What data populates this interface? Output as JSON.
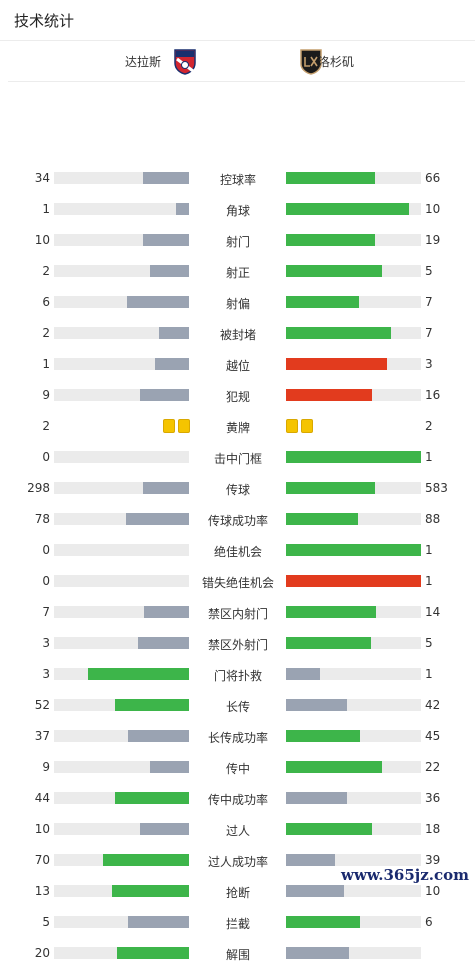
{
  "header": {
    "title": "技术统计"
  },
  "teams": {
    "home": "达拉斯",
    "away": "洛杉矶"
  },
  "colors": {
    "green": "#3db54a",
    "gray": "#9aa3b2",
    "red": "#e23b1e",
    "track": "#ebebeb",
    "yellow": "#f5c400"
  },
  "stats": [
    {
      "label": "控球率",
      "home": "34",
      "away": "66",
      "home_pct": 0.34,
      "away_pct": 0.66,
      "home_color": "gray",
      "away_color": "green"
    },
    {
      "label": "角球",
      "home": "1",
      "away": "10",
      "home_pct": 0.1,
      "away_pct": 0.91,
      "home_color": "gray",
      "away_color": "green"
    },
    {
      "label": "射门",
      "home": "10",
      "away": "19",
      "home_pct": 0.34,
      "away_pct": 0.66,
      "home_color": "gray",
      "away_color": "green"
    },
    {
      "label": "射正",
      "home": "2",
      "away": "5",
      "home_pct": 0.29,
      "away_pct": 0.71,
      "home_color": "gray",
      "away_color": "green"
    },
    {
      "label": "射偏",
      "home": "6",
      "away": "7",
      "home_pct": 0.46,
      "away_pct": 0.54,
      "home_color": "gray",
      "away_color": "green"
    },
    {
      "label": "被封堵",
      "home": "2",
      "away": "7",
      "home_pct": 0.22,
      "away_pct": 0.78,
      "home_color": "gray",
      "away_color": "green"
    },
    {
      "label": "越位",
      "home": "1",
      "away": "3",
      "home_pct": 0.25,
      "away_pct": 0.75,
      "home_color": "gray",
      "away_color": "red"
    },
    {
      "label": "犯规",
      "home": "9",
      "away": "16",
      "home_pct": 0.36,
      "away_pct": 0.64,
      "home_color": "gray",
      "away_color": "red"
    },
    {
      "label": "黄牌",
      "home": "2",
      "away": "2",
      "cards": true,
      "home_cards": 2,
      "away_cards": 2
    },
    {
      "label": "击中门框",
      "home": "0",
      "away": "1",
      "home_pct": 0,
      "away_pct": 1,
      "home_color": "gray",
      "away_color": "green"
    },
    {
      "label": "传球",
      "home": "298",
      "away": "583",
      "home_pct": 0.34,
      "away_pct": 0.66,
      "home_color": "gray",
      "away_color": "green"
    },
    {
      "label": "传球成功率",
      "home": "78",
      "away": "88",
      "home_pct": 0.47,
      "away_pct": 0.53,
      "home_color": "gray",
      "away_color": "green"
    },
    {
      "label": "绝佳机会",
      "home": "0",
      "away": "1",
      "home_pct": 0,
      "away_pct": 1,
      "home_color": "gray",
      "away_color": "green"
    },
    {
      "label": "错失绝佳机会",
      "home": "0",
      "away": "1",
      "home_pct": 0,
      "away_pct": 1,
      "home_color": "gray",
      "away_color": "red"
    },
    {
      "label": "禁区内射门",
      "home": "7",
      "away": "14",
      "home_pct": 0.33,
      "away_pct": 0.67,
      "home_color": "gray",
      "away_color": "green"
    },
    {
      "label": "禁区外射门",
      "home": "3",
      "away": "5",
      "home_pct": 0.38,
      "away_pct": 0.63,
      "home_color": "gray",
      "away_color": "green"
    },
    {
      "label": "门将扑救",
      "home": "3",
      "away": "1",
      "home_pct": 0.75,
      "away_pct": 0.25,
      "home_color": "green",
      "away_color": "gray"
    },
    {
      "label": "长传",
      "home": "52",
      "away": "42",
      "home_pct": 0.55,
      "away_pct": 0.45,
      "home_color": "green",
      "away_color": "gray"
    },
    {
      "label": "长传成功率",
      "home": "37",
      "away": "45",
      "home_pct": 0.45,
      "away_pct": 0.55,
      "home_color": "gray",
      "away_color": "green"
    },
    {
      "label": "传中",
      "home": "9",
      "away": "22",
      "home_pct": 0.29,
      "away_pct": 0.71,
      "home_color": "gray",
      "away_color": "green"
    },
    {
      "label": "传中成功率",
      "home": "44",
      "away": "36",
      "home_pct": 0.55,
      "away_pct": 0.45,
      "home_color": "green",
      "away_color": "gray"
    },
    {
      "label": "过人",
      "home": "10",
      "away": "18",
      "home_pct": 0.36,
      "away_pct": 0.64,
      "home_color": "gray",
      "away_color": "green"
    },
    {
      "label": "过人成功率",
      "home": "70",
      "away": "39",
      "home_pct": 0.64,
      "away_pct": 0.36,
      "home_color": "green",
      "away_color": "gray"
    },
    {
      "label": "抢断",
      "home": "13",
      "away": "10",
      "home_pct": 0.57,
      "away_pct": 0.43,
      "home_color": "green",
      "away_color": "gray"
    },
    {
      "label": "拦截",
      "home": "5",
      "away": "6",
      "home_pct": 0.45,
      "away_pct": 0.55,
      "home_color": "gray",
      "away_color": "green"
    },
    {
      "label": "解围",
      "home": "20",
      "away": "",
      "home_pct": 0.53,
      "away_pct": 0.47,
      "home_color": "green",
      "away_color": "gray"
    }
  ],
  "watermark": "www.365jz.com"
}
